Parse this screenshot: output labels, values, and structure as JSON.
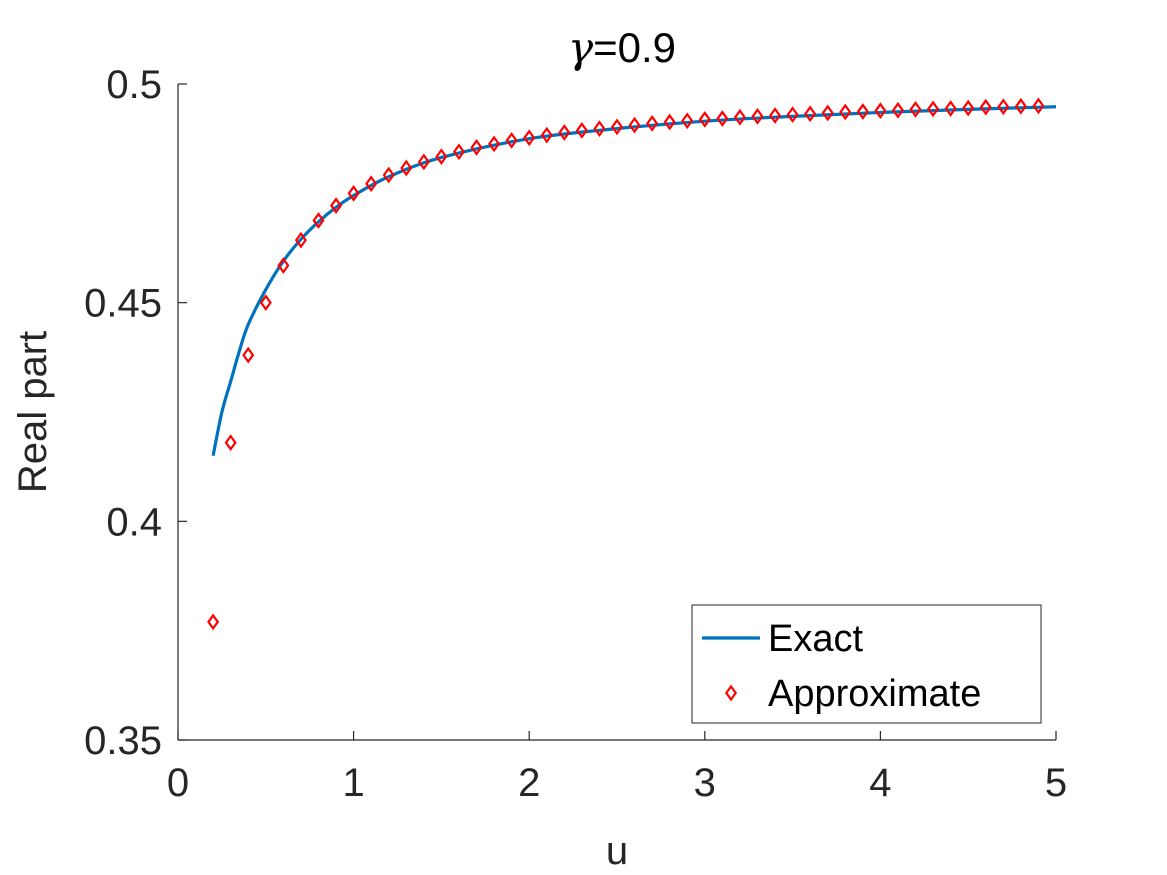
{
  "chart_data": {
    "type": "line",
    "title_symbol": "γ",
    "title_value": "=0.9",
    "xlabel": "u",
    "ylabel": "Real part",
    "xlim": [
      0,
      5
    ],
    "ylim": [
      0.35,
      0.5
    ],
    "xticks": [
      0,
      1,
      2,
      3,
      4,
      5
    ],
    "xtick_labels": [
      "0",
      "1",
      "2",
      "3",
      "4",
      "5"
    ],
    "yticks": [
      0.35,
      0.4,
      0.45,
      0.5
    ],
    "ytick_labels": [
      "0.35",
      "0.4",
      "0.45",
      "0.5"
    ],
    "grid": false,
    "legend_position": "bottom-right",
    "series": [
      {
        "name": "Exact",
        "style": "line",
        "color": "#0072BD",
        "x": [
          0.2,
          0.25,
          0.3,
          0.35,
          0.4,
          0.5,
          0.6,
          0.7,
          0.8,
          0.9,
          1.0,
          1.2,
          1.5,
          2.0,
          2.5,
          3.0,
          3.5,
          4.0,
          4.5,
          5.0
        ],
        "y": [
          0.415,
          0.425,
          0.432,
          0.439,
          0.445,
          0.453,
          0.4595,
          0.4645,
          0.4685,
          0.4718,
          0.4745,
          0.4788,
          0.4832,
          0.4875,
          0.4898,
          0.4915,
          0.4926,
          0.4935,
          0.4942,
          0.4948
        ]
      },
      {
        "name": "Approximate",
        "style": "marker-diamond",
        "color": "#FF0000",
        "x": [
          0.2,
          0.3,
          0.4,
          0.5,
          0.6,
          0.7,
          0.8,
          0.9,
          1.0,
          1.1,
          1.2,
          1.3,
          1.4,
          1.5,
          1.6,
          1.7,
          1.8,
          1.9,
          2.0,
          2.1,
          2.2,
          2.3,
          2.4,
          2.5,
          2.6,
          2.7,
          2.8,
          2.9,
          3.0,
          3.1,
          3.2,
          3.3,
          3.4,
          3.5,
          3.6,
          3.7,
          3.8,
          3.9,
          4.0,
          4.1,
          4.2,
          4.3,
          4.4,
          4.5,
          4.6,
          4.7,
          4.8,
          4.9
        ],
        "y": [
          0.377,
          0.418,
          0.438,
          0.45,
          0.4585,
          0.4643,
          0.4688,
          0.4722,
          0.475,
          0.4772,
          0.4792,
          0.4808,
          0.4822,
          0.4834,
          0.4845,
          0.4855,
          0.4863,
          0.4871,
          0.4877,
          0.4883,
          0.4889,
          0.4894,
          0.4898,
          0.4902,
          0.4906,
          0.491,
          0.4913,
          0.4916,
          0.4919,
          0.4921,
          0.4924,
          0.4926,
          0.4928,
          0.493,
          0.4932,
          0.4934,
          0.4936,
          0.4937,
          0.4939,
          0.494,
          0.4942,
          0.4943,
          0.4944,
          0.4945,
          0.4947,
          0.4948,
          0.4949,
          0.495
        ]
      }
    ]
  }
}
